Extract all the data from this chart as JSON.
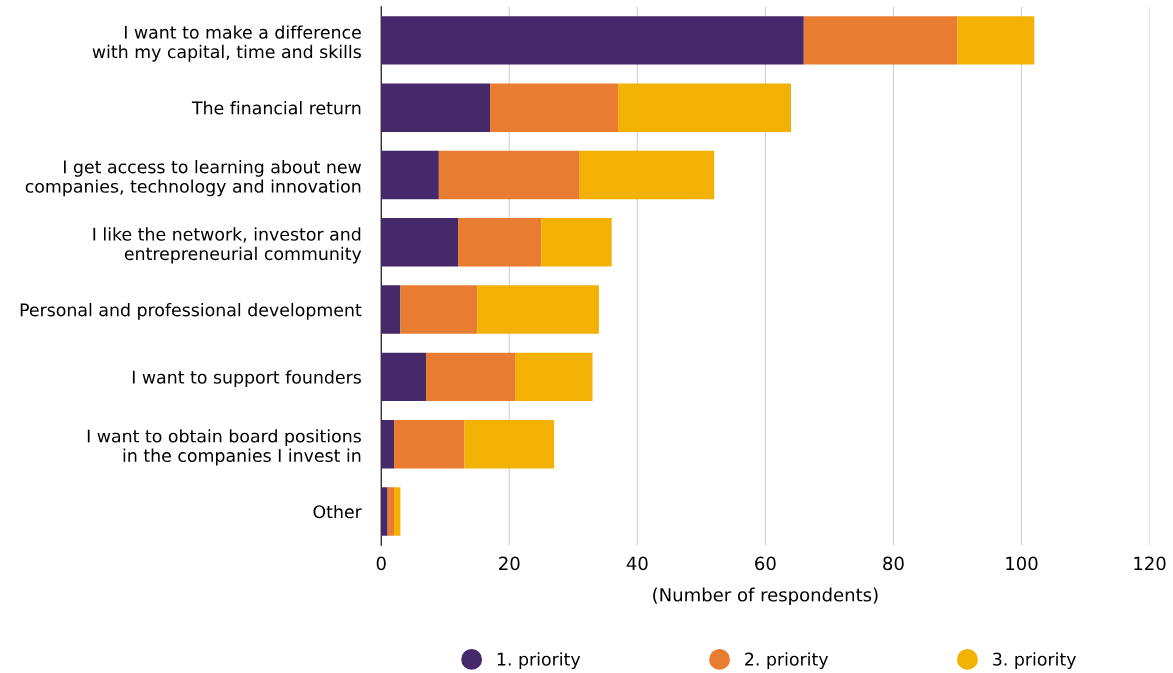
{
  "chart_data": {
    "type": "bar",
    "orientation": "horizontal",
    "stacked": true,
    "categories": [
      "I want to make a difference\nwith my capital, time and skills",
      "The financial return",
      "I get access to learning about new\ncompanies, technology and innovation",
      "I like the network, investor and\nentrepreneurial community",
      "Personal and professional development",
      "I want to support founders",
      "I want to obtain board positions\nin the companies I invest in",
      "Other"
    ],
    "series": [
      {
        "name": "1. priority",
        "color": "#46296a",
        "values": [
          66,
          17,
          9,
          12,
          3,
          7,
          2,
          1
        ]
      },
      {
        "name": "2. priority",
        "color": "#e87d31",
        "values": [
          24,
          20,
          22,
          13,
          12,
          14,
          11,
          1
        ]
      },
      {
        "name": "3. priority",
        "color": "#f2b103",
        "values": [
          12,
          27,
          21,
          11,
          19,
          12,
          14,
          1
        ]
      }
    ],
    "xlabel": "(Number of respondents)",
    "xlim": [
      0,
      120
    ],
    "xticks": [
      0,
      20,
      40,
      60,
      80,
      100,
      120
    ],
    "grid": "x",
    "legend": "bottom",
    "marker": "circle"
  }
}
